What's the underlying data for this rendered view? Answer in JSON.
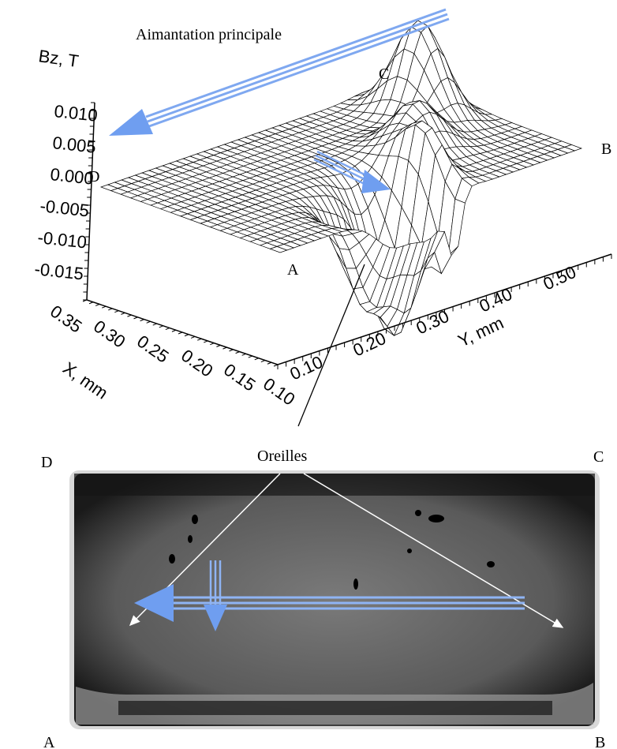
{
  "annotations": {
    "magnetization": "Aimantation principale",
    "ears": "Oreilles"
  },
  "surface_corners": {
    "a": "A",
    "b": "B",
    "c": "C",
    "d": "D"
  },
  "image_corners": {
    "a": "A",
    "b": "B",
    "c": "C",
    "d": "D"
  },
  "axes": {
    "z": {
      "label": "Bz, T",
      "ticks": [
        "0.010",
        "0.005",
        "0.000",
        "-0.005",
        "-0.010",
        "-0.015"
      ]
    },
    "x": {
      "label": "X, mm",
      "ticks": [
        "0.35",
        "0.30",
        "0.25",
        "0.20",
        "0.15",
        "0.10"
      ]
    },
    "y": {
      "label": "Y, mm",
      "ticks": [
        "0.10",
        "0.20",
        "0.30",
        "0.40",
        "0.50"
      ]
    }
  }
}
